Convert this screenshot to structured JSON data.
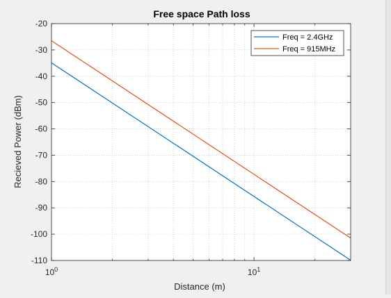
{
  "chart_data": {
    "type": "line",
    "title": "Free space Path loss",
    "xlabel": "Distance (m)",
    "ylabel": "Recieved Power (dBm)",
    "xscale": "log",
    "xlim": [
      1,
      30
    ],
    "ylim": [
      -110,
      -20
    ],
    "grid": "on (major and minor x gridlines, dotted)",
    "legend_location": "top-right",
    "x_ticks": [
      {
        "value": 1,
        "base": "10",
        "exp": "0"
      },
      {
        "value": 10,
        "base": "10",
        "exp": "1"
      }
    ],
    "y_ticks": [
      -20,
      -30,
      -40,
      -50,
      -60,
      -70,
      -80,
      -90,
      -100,
      -110
    ],
    "x_minor_ticks": [
      2,
      3,
      4,
      5,
      6,
      7,
      8,
      9,
      20,
      30
    ],
    "series": [
      {
        "name": "Freq = 2.4GHz",
        "color": "#0072bd",
        "x": [
          1,
          30
        ],
        "y": [
          -34.9,
          -109.9
        ]
      },
      {
        "name": "Freq = 915MHz",
        "color": "#d95319",
        "x": [
          1,
          30
        ],
        "y": [
          -26.5,
          -101.5
        ]
      }
    ]
  }
}
